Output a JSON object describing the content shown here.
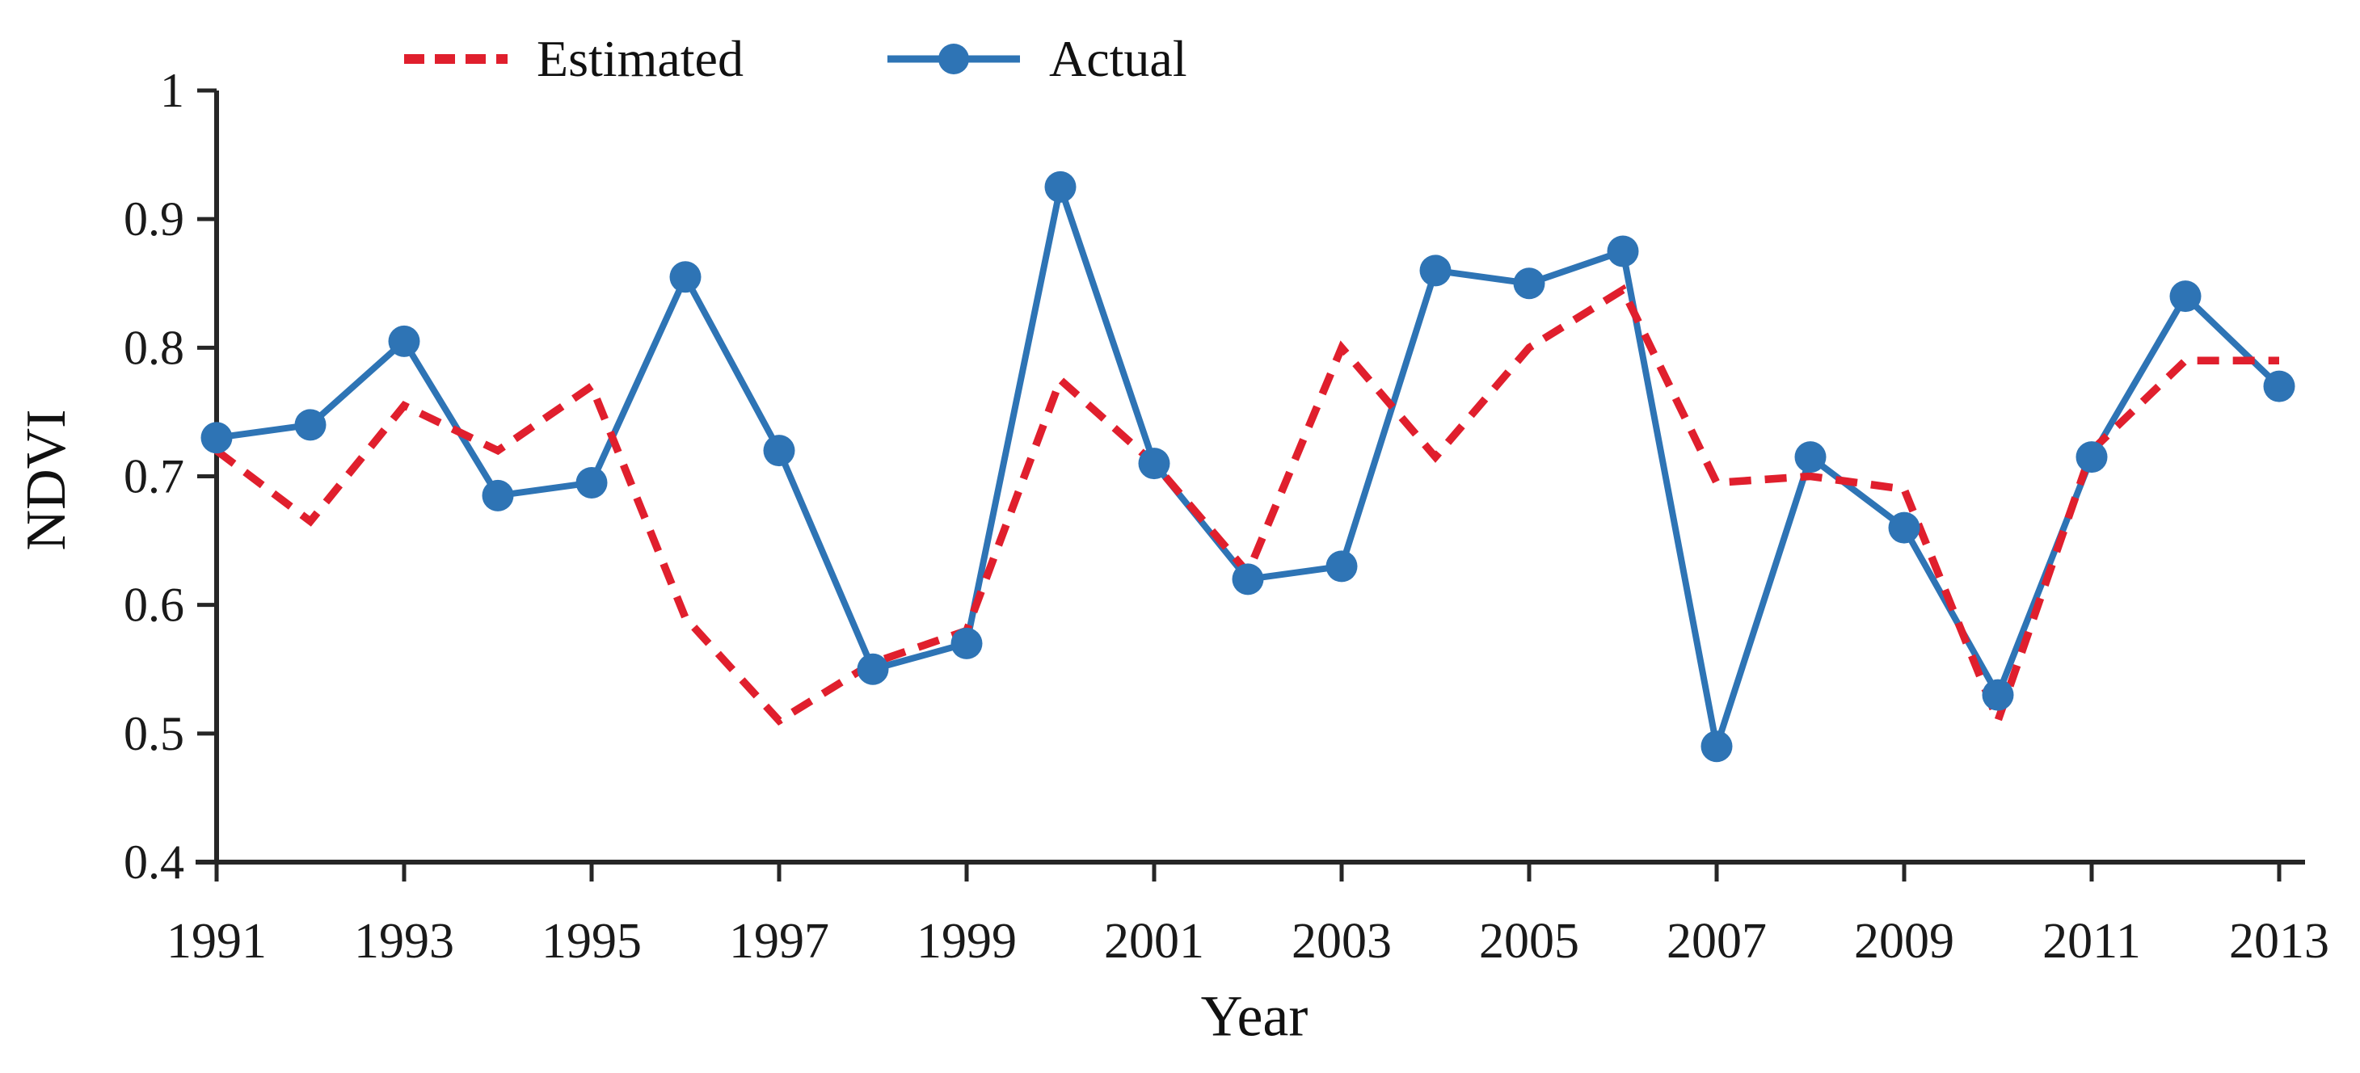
{
  "legend": {
    "estimated_label": "Estimated",
    "actual_label": "Actual"
  },
  "axes": {
    "y_title": "NDVI",
    "x_title": "Year",
    "y_tick_labels": [
      "1",
      "0.9",
      "0.8",
      "0.7",
      "0.6",
      "0.5",
      "0.4"
    ],
    "y_tick_values": [
      1.0,
      0.9,
      0.8,
      0.7,
      0.6,
      0.5,
      0.4
    ],
    "x_tick_labels": [
      "1991",
      "1993",
      "1995",
      "1997",
      "1999",
      "2001",
      "2003",
      "2005",
      "2007",
      "2009",
      "2011",
      "2013"
    ],
    "x_tick_values": [
      1991,
      1993,
      1995,
      1997,
      1999,
      2001,
      2003,
      2005,
      2007,
      2009,
      2011,
      2013
    ]
  },
  "colors": {
    "estimated": "#e01f2d",
    "actual": "#2e74b5",
    "axis": "#262626",
    "background": "#ffffff"
  },
  "chart_data": {
    "type": "line",
    "title": "",
    "xlabel": "Year",
    "ylabel": "NDVI",
    "xlim": [
      1991,
      2013
    ],
    "ylim": [
      0.4,
      1.0
    ],
    "y_tick_step": 0.1,
    "x_tick_step": 2,
    "grid": false,
    "legend_position": "top",
    "x": [
      1991,
      1992,
      1993,
      1994,
      1995,
      1996,
      1997,
      1998,
      1999,
      2000,
      2001,
      2002,
      2003,
      2004,
      2005,
      2006,
      2007,
      2008,
      2009,
      2010,
      2011,
      2012,
      2013
    ],
    "series": [
      {
        "name": "Estimated",
        "style": "dashed",
        "color": "#e01f2d",
        "values": [
          0.72,
          0.665,
          0.755,
          0.72,
          0.77,
          0.59,
          0.51,
          0.555,
          0.58,
          0.775,
          0.71,
          0.625,
          0.8,
          0.715,
          0.8,
          0.845,
          0.695,
          0.7,
          0.69,
          0.51,
          0.72,
          0.79,
          0.79
        ]
      },
      {
        "name": "Actual",
        "style": "solid-with-markers",
        "color": "#2e74b5",
        "values": [
          0.73,
          0.74,
          0.805,
          0.685,
          0.695,
          0.855,
          0.72,
          0.55,
          0.57,
          0.925,
          0.71,
          0.62,
          0.63,
          0.86,
          0.85,
          0.875,
          0.49,
          0.715,
          0.66,
          0.53,
          0.715,
          0.84,
          0.77
        ]
      }
    ]
  }
}
